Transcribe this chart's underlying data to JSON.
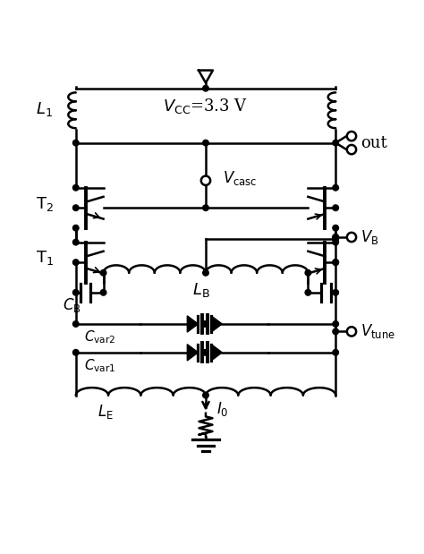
{
  "bg_color": "#ffffff",
  "line_color": "#000000",
  "lw": 1.8,
  "figsize": [
    4.74,
    6.19
  ],
  "dpi": 100,
  "labels": {
    "VCC": {
      "text": "$V_{\\mathrm{CC}}$=3.3 V",
      "fontsize": 13
    },
    "L1": {
      "text": "$L_{1}$",
      "fontsize": 13
    },
    "out": {
      "text": "out",
      "fontsize": 13
    },
    "Vcasc": {
      "text": "$V_{\\mathrm{casc}}$",
      "fontsize": 12
    },
    "T2": {
      "text": "$\\mathrm{T}_{2}$",
      "fontsize": 13
    },
    "VB": {
      "text": "$V_{\\mathrm{B}}$",
      "fontsize": 12
    },
    "T1": {
      "text": "$\\mathrm{T}_{1}$",
      "fontsize": 13
    },
    "LB": {
      "text": "$L_{\\mathrm{B}}$",
      "fontsize": 13
    },
    "CB": {
      "text": "$C_{\\mathrm{B}}$",
      "fontsize": 12
    },
    "Vtune": {
      "text": "$V_{\\mathrm{tune}}$",
      "fontsize": 12
    },
    "Cvar2": {
      "text": "$C_{\\mathrm{var2}}$",
      "fontsize": 11
    },
    "Cvar1": {
      "text": "$C_{\\mathrm{var1}}$",
      "fontsize": 11
    },
    "LE": {
      "text": "$L_{\\mathrm{E}}$",
      "fontsize": 12
    },
    "I0": {
      "text": "$I_{0}$",
      "fontsize": 12
    }
  }
}
